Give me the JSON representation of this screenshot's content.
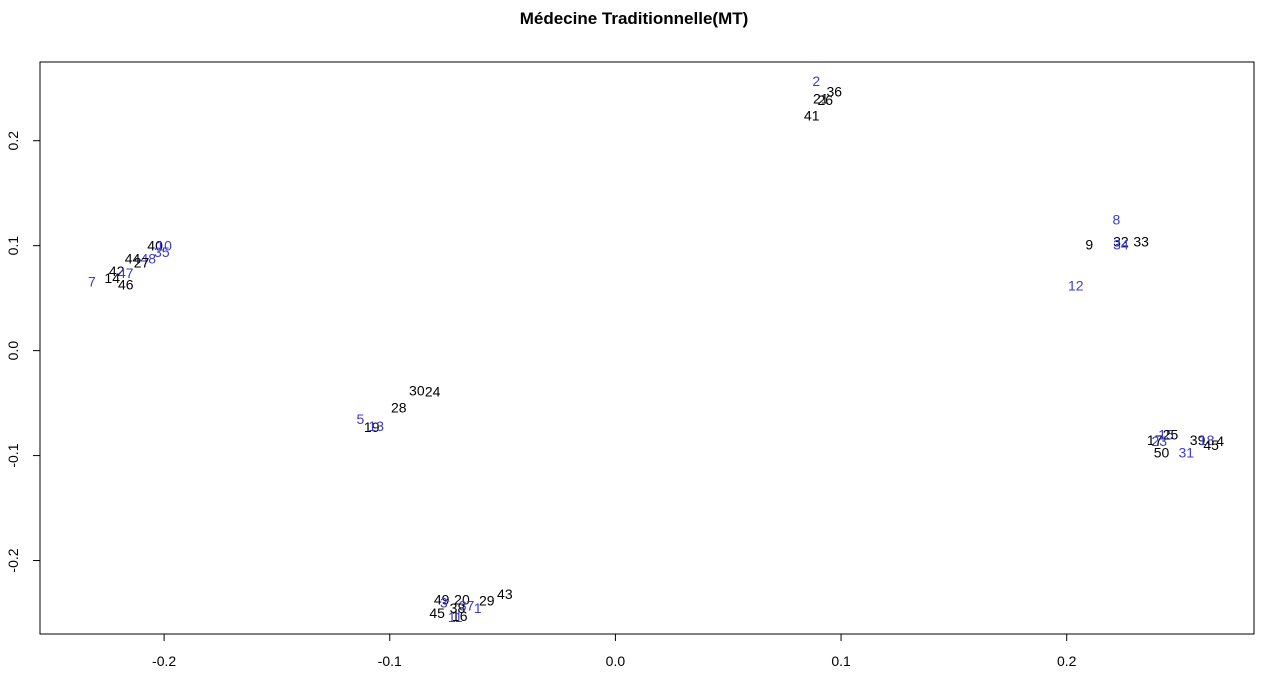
{
  "chart_data": {
    "type": "scatter",
    "title": "Médecine Traditionnelle(MT)",
    "xlabel": "",
    "ylabel": "",
    "xlim": [
      -0.255,
      0.283
    ],
    "ylim": [
      -0.27,
      0.275
    ],
    "x_ticks": [
      -0.2,
      -0.1,
      0.0,
      0.1,
      0.2
    ],
    "x_tick_labels": [
      "-0.2",
      "-0.1",
      "0.0",
      "0.1",
      "0.2"
    ],
    "y_ticks": [
      -0.2,
      -0.1,
      0.0,
      0.1,
      0.2
    ],
    "y_tick_labels": [
      "-0.2",
      "-0.1",
      "0.0",
      "0.1",
      "0.2"
    ],
    "grid": false,
    "colors": {
      "black_label": "#000000",
      "blue_label": "#3a3ad6",
      "axis": "#000000"
    },
    "points": [
      {
        "label": "2",
        "x": 0.089,
        "y": 0.257,
        "color": "blue"
      },
      {
        "label": "36",
        "x": 0.097,
        "y": 0.247,
        "color": "black"
      },
      {
        "label": "21",
        "x": 0.091,
        "y": 0.24,
        "color": "black"
      },
      {
        "label": "26",
        "x": 0.093,
        "y": 0.239,
        "color": "black"
      },
      {
        "label": "41",
        "x": 0.087,
        "y": 0.224,
        "color": "black"
      },
      {
        "label": "8",
        "x": 0.222,
        "y": 0.125,
        "color": "blue"
      },
      {
        "label": "32",
        "x": 0.224,
        "y": 0.104,
        "color": "black"
      },
      {
        "label": "34",
        "x": 0.224,
        "y": 0.101,
        "color": "blue"
      },
      {
        "label": "33",
        "x": 0.233,
        "y": 0.104,
        "color": "black"
      },
      {
        "label": "9",
        "x": 0.21,
        "y": 0.101,
        "color": "black"
      },
      {
        "label": "12",
        "x": 0.204,
        "y": 0.062,
        "color": "blue"
      },
      {
        "label": "40",
        "x": -0.204,
        "y": 0.1,
        "color": "black"
      },
      {
        "label": "10",
        "x": -0.2,
        "y": 0.1,
        "color": "blue"
      },
      {
        "label": "35",
        "x": -0.201,
        "y": 0.094,
        "color": "blue"
      },
      {
        "label": "44",
        "x": -0.214,
        "y": 0.088,
        "color": "black"
      },
      {
        "label": "48",
        "x": -0.207,
        "y": 0.088,
        "color": "blue"
      },
      {
        "label": "27",
        "x": -0.21,
        "y": 0.084,
        "color": "black"
      },
      {
        "label": "42",
        "x": -0.221,
        "y": 0.076,
        "color": "black"
      },
      {
        "label": "47",
        "x": -0.217,
        "y": 0.074,
        "color": "blue"
      },
      {
        "label": "14",
        "x": -0.223,
        "y": 0.069,
        "color": "black"
      },
      {
        "label": "46",
        "x": -0.217,
        "y": 0.063,
        "color": "black"
      },
      {
        "label": "7",
        "x": -0.232,
        "y": 0.066,
        "color": "blue"
      },
      {
        "label": "30",
        "x": -0.088,
        "y": -0.038,
        "color": "black"
      },
      {
        "label": "24",
        "x": -0.081,
        "y": -0.039,
        "color": "black"
      },
      {
        "label": "28",
        "x": -0.096,
        "y": -0.054,
        "color": "black"
      },
      {
        "label": "5",
        "x": -0.113,
        "y": -0.065,
        "color": "blue"
      },
      {
        "label": "19",
        "x": -0.108,
        "y": -0.073,
        "color": "black"
      },
      {
        "label": "13",
        "x": -0.106,
        "y": -0.072,
        "color": "blue"
      },
      {
        "label": "15",
        "x": 0.244,
        "y": -0.08,
        "color": "blue"
      },
      {
        "label": "25",
        "x": 0.246,
        "y": -0.08,
        "color": "black"
      },
      {
        "label": "17",
        "x": 0.239,
        "y": -0.085,
        "color": "black"
      },
      {
        "label": "23",
        "x": 0.241,
        "y": -0.086,
        "color": "blue"
      },
      {
        "label": "50",
        "x": 0.242,
        "y": -0.097,
        "color": "black"
      },
      {
        "label": "31",
        "x": 0.253,
        "y": -0.097,
        "color": "blue"
      },
      {
        "label": "39",
        "x": 0.258,
        "y": -0.085,
        "color": "black"
      },
      {
        "label": "18",
        "x": 0.262,
        "y": -0.085,
        "color": "blue"
      },
      {
        "label": "4",
        "x": 0.268,
        "y": -0.086,
        "color": "black"
      },
      {
        "label": "45",
        "x": 0.264,
        "y": -0.09,
        "color": "black"
      },
      {
        "label": "49",
        "x": -0.077,
        "y": -0.237,
        "color": "black"
      },
      {
        "label": "3",
        "x": -0.076,
        "y": -0.24,
        "color": "blue"
      },
      {
        "label": "20",
        "x": -0.068,
        "y": -0.237,
        "color": "black"
      },
      {
        "label": "29",
        "x": -0.057,
        "y": -0.238,
        "color": "black"
      },
      {
        "label": "43",
        "x": -0.049,
        "y": -0.232,
        "color": "black"
      },
      {
        "label": "37",
        "x": -0.066,
        "y": -0.243,
        "color": "blue"
      },
      {
        "label": "38",
        "x": -0.07,
        "y": -0.245,
        "color": "black"
      },
      {
        "label": "1",
        "x": -0.061,
        "y": -0.245,
        "color": "blue"
      },
      {
        "label": "45",
        "x": -0.079,
        "y": -0.25,
        "color": "black"
      },
      {
        "label": "16",
        "x": -0.069,
        "y": -0.253,
        "color": "black"
      },
      {
        "label": "11",
        "x": -0.071,
        "y": -0.254,
        "color": "blue"
      }
    ]
  }
}
